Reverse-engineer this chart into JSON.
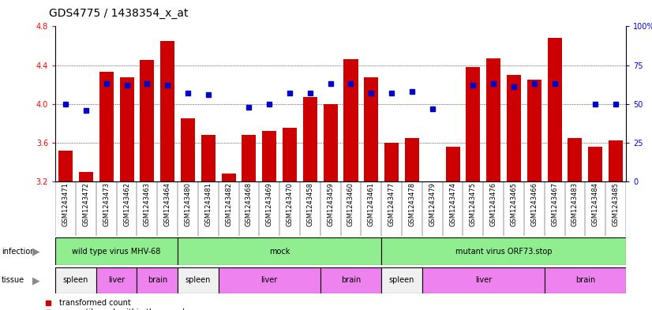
{
  "title": "GDS4775 / 1438354_x_at",
  "samples": [
    "GSM1243471",
    "GSM1243472",
    "GSM1243473",
    "GSM1243462",
    "GSM1243463",
    "GSM1243464",
    "GSM1243480",
    "GSM1243481",
    "GSM1243482",
    "GSM1243468",
    "GSM1243469",
    "GSM1243470",
    "GSM1243458",
    "GSM1243459",
    "GSM1243460",
    "GSM1243461",
    "GSM1243477",
    "GSM1243478",
    "GSM1243479",
    "GSM1243474",
    "GSM1243475",
    "GSM1243476",
    "GSM1243465",
    "GSM1243466",
    "GSM1243467",
    "GSM1243483",
    "GSM1243484",
    "GSM1243485"
  ],
  "bar_values": [
    3.52,
    3.3,
    4.33,
    4.27,
    4.45,
    4.65,
    3.85,
    3.68,
    3.28,
    3.68,
    3.72,
    3.75,
    4.07,
    4.0,
    4.46,
    4.27,
    3.6,
    3.65,
    3.2,
    3.56,
    4.38,
    4.47,
    4.3,
    4.25,
    4.68,
    3.65,
    3.56,
    3.62
  ],
  "percentile_values": [
    50,
    46,
    63,
    62,
    63,
    62,
    57,
    56,
    null,
    48,
    50,
    57,
    57,
    63,
    63,
    57,
    57,
    58,
    47,
    null,
    62,
    63,
    61,
    63,
    63,
    null,
    50,
    50
  ],
  "ylim_left": [
    3.2,
    4.8
  ],
  "ylim_right": [
    0,
    100
  ],
  "yticks_left": [
    3.2,
    3.6,
    4.0,
    4.4,
    4.8
  ],
  "yticks_right": [
    0,
    25,
    50,
    75,
    100
  ],
  "bar_color": "#cc0000",
  "dot_color": "#0000cc",
  "infection_groups": [
    {
      "label": "wild type virus MHV-68",
      "start": 0,
      "end": 6
    },
    {
      "label": "mock",
      "start": 6,
      "end": 16
    },
    {
      "label": "mutant virus ORF73.stop",
      "start": 16,
      "end": 28
    }
  ],
  "infection_color": "#90ee90",
  "tissue_groups": [
    {
      "label": "spleen",
      "start": 0,
      "end": 2,
      "color": "#f0f0f0"
    },
    {
      "label": "liver",
      "start": 2,
      "end": 4,
      "color": "#ee82ee"
    },
    {
      "label": "brain",
      "start": 4,
      "end": 6,
      "color": "#ee82ee"
    },
    {
      "label": "spleen",
      "start": 6,
      "end": 8,
      "color": "#f0f0f0"
    },
    {
      "label": "liver",
      "start": 8,
      "end": 13,
      "color": "#ee82ee"
    },
    {
      "label": "brain",
      "start": 13,
      "end": 16,
      "color": "#ee82ee"
    },
    {
      "label": "spleen",
      "start": 16,
      "end": 18,
      "color": "#f0f0f0"
    },
    {
      "label": "liver",
      "start": 18,
      "end": 24,
      "color": "#ee82ee"
    },
    {
      "label": "brain",
      "start": 24,
      "end": 28,
      "color": "#ee82ee"
    }
  ],
  "xtick_bg": "#d8d8d8",
  "arrow_color": "#888888",
  "title_fontsize": 10,
  "axis_label_fontsize": 7,
  "tick_fontsize": 7,
  "bar_fontsize": 6,
  "group_fontsize": 7
}
